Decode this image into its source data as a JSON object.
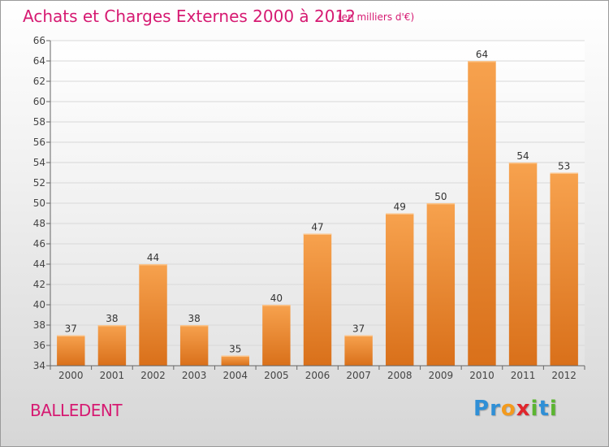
{
  "chart_data": {
    "type": "bar",
    "title": "Achats et Charges Externes 2000 à 2012",
    "subtitle": "(en milliers d'€)",
    "categories": [
      "2000",
      "2001",
      "2002",
      "2003",
      "2004",
      "2005",
      "2006",
      "2007",
      "2008",
      "2009",
      "2010",
      "2011",
      "2012"
    ],
    "values": [
      37,
      38,
      44,
      38,
      35,
      40,
      47,
      37,
      49,
      50,
      64,
      54,
      53
    ],
    "ylim": [
      34,
      66
    ],
    "yticks": [
      34,
      36,
      38,
      40,
      42,
      44,
      46,
      48,
      50,
      52,
      54,
      56,
      58,
      60,
      62,
      64,
      66
    ],
    "grid": true,
    "bar_color_top": "#f7a24e",
    "bar_color_bottom": "#d9701a",
    "title_color": "#d61a72"
  },
  "footer": {
    "commune": "BALLEDENT",
    "logo_letters": [
      {
        "ch": "P",
        "color": "#2f8fd6"
      },
      {
        "ch": "r",
        "color": "#2f8fd6"
      },
      {
        "ch": "o",
        "color": "#f39a1d"
      },
      {
        "ch": "x",
        "color": "#e0262d"
      },
      {
        "ch": "i",
        "color": "#5bb531"
      },
      {
        "ch": "t",
        "color": "#2f8fd6"
      },
      {
        "ch": "i",
        "color": "#5bb531"
      }
    ]
  }
}
